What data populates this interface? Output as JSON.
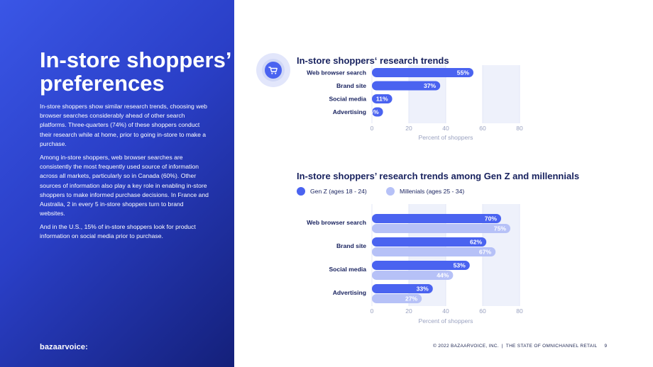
{
  "left": {
    "heading": "In-store shoppers’ preferences",
    "para1": "In-store shoppers show similar research trends, choosing web browser searches considerably ahead of other search platforms. Three-quarters (74%) of these shoppers conduct their research while at home, prior to going in-store to make a purchase.",
    "para2": "Among in-store shoppers, web browser searches are consistently the most frequently used source of information across all markets, particularly so in Canada (60%). Other sources of information also play a key role in enabling in-store shoppers to make informed purchase decisions. In France and Australia, 2 in every 5 in-store shoppers turn to brand websites.",
    "para3": "And in the U.S., 15% of in-store shoppers look for product information on social media prior to purchase.",
    "logo": "bazaarvoice:"
  },
  "footer": {
    "text": "© 2022 BAZAARVOICE, INC.",
    "separator": "|",
    "doc": "THE STATE OF OMNICHANNEL RETAIL",
    "page": "9"
  },
  "icons": {
    "badge": "shopping-cart-icon"
  },
  "colors": {
    "primary": "#4a63f0",
    "secondary": "#b6c1f7",
    "navy": "#17215e",
    "grid_band": "#eef1fb"
  },
  "chart_data": [
    {
      "type": "bar",
      "orientation": "horizontal",
      "title": "In-store shoppers‘ research trends",
      "categories": [
        "Web browser search",
        "Brand site",
        "Social media",
        "Advertising"
      ],
      "values": [
        55,
        37,
        11,
        6
      ],
      "value_labels": [
        "55%",
        "37%",
        "11%",
        "6%"
      ],
      "xlabel": "Percent of shoppers",
      "xlim": [
        0,
        80
      ],
      "xticks": [
        0,
        20,
        40,
        60,
        80
      ]
    },
    {
      "type": "bar",
      "orientation": "horizontal",
      "title": "In-store shoppers’ research trends among Gen Z and millennials",
      "categories": [
        "Web browser search",
        "Brand site",
        "Social media",
        "Advertising"
      ],
      "series": [
        {
          "name": "Gen Z (ages 18 - 24)",
          "values": [
            70,
            62,
            53,
            33
          ],
          "labels": [
            "70%",
            "62%",
            "53%",
            "33%"
          ]
        },
        {
          "name": "Millenials (ages 25 - 34)",
          "values": [
            75,
            67,
            44,
            27
          ],
          "labels": [
            "75%",
            "67%",
            "44%",
            "27%"
          ]
        }
      ],
      "xlabel": "Percent of shoppers",
      "xlim": [
        0,
        80
      ],
      "xticks": [
        0,
        20,
        40,
        60,
        80
      ]
    }
  ]
}
